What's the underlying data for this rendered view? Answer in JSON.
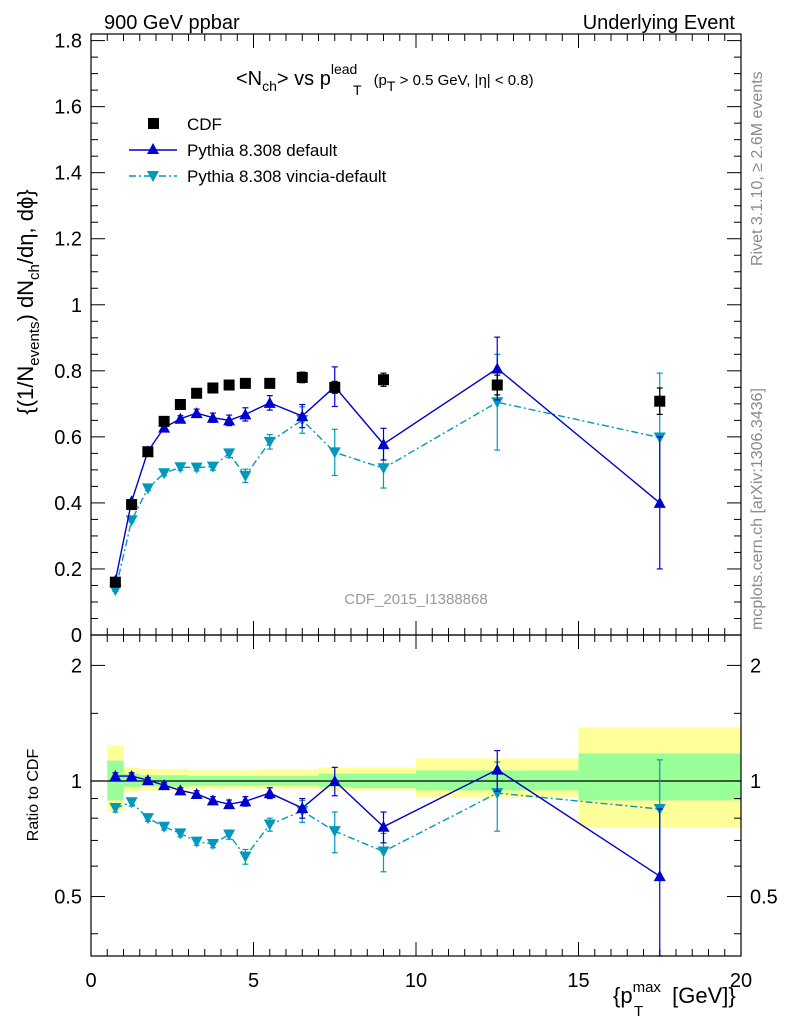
{
  "header": {
    "left": "900 GeV ppbar",
    "right": "Underlying Event"
  },
  "side_labels": {
    "top": "Rivet 3.1.10, ≥ 2.6M events",
    "bottom": "mcplots.cern.ch [arXiv:1306.3436]"
  },
  "watermark": "CDF_2015_I1388868",
  "chart_data": [
    {
      "panel": "main",
      "type": "scatter",
      "title": {
        "lhs": "<N",
        "lhs_sub": "ch",
        "mid": "> vs p",
        "sub_T": "T",
        "sup_lead": "lead",
        "cut_open": "(p",
        "cut_sub": "T",
        "cut_rest": " > 0.5 GeV, |η| < 0.8)"
      },
      "ylabel": {
        "a": "{(1/N",
        "a_sub": "events",
        "b": ") dN",
        "b_sub": "ch",
        "c": "/dη, dϕ}"
      },
      "xlim": [
        0,
        20
      ],
      "ylim": [
        0,
        1.82
      ],
      "yticks": [
        0,
        0.2,
        0.4,
        0.6,
        0.8,
        1,
        1.2,
        1.4,
        1.6,
        1.8
      ],
      "ytick_labels": [
        "0",
        "0.2",
        "0.4",
        "0.6",
        "0.8",
        "1",
        "1.2",
        "1.4",
        "1.6",
        "1.8"
      ],
      "legend_position": "top-left",
      "series": [
        {
          "name": "CDF",
          "color": "#000000",
          "marker": "square",
          "x": [
            0.75,
            1.25,
            1.75,
            2.25,
            2.75,
            3.25,
            3.75,
            4.25,
            4.75,
            5.5,
            6.5,
            7.5,
            9.0,
            12.5,
            17.5
          ],
          "y": [
            0.16,
            0.395,
            0.555,
            0.647,
            0.698,
            0.732,
            0.748,
            0.757,
            0.762,
            0.762,
            0.78,
            0.75,
            0.773,
            0.757,
            0.708
          ],
          "yerr": [
            0.004,
            0.006,
            0.007,
            0.008,
            0.009,
            0.01,
            0.011,
            0.012,
            0.013,
            0.013,
            0.016,
            0.018,
            0.02,
            0.03,
            0.04
          ]
        },
        {
          "name": "Pythia 8.308 default",
          "color": "#0000cc",
          "marker": "triangle-up",
          "line": "solid",
          "x": [
            0.75,
            1.25,
            1.75,
            2.25,
            2.75,
            3.25,
            3.75,
            4.25,
            4.75,
            5.5,
            6.5,
            7.5,
            9.0,
            12.5,
            17.5
          ],
          "y": [
            0.165,
            0.405,
            0.556,
            0.628,
            0.655,
            0.672,
            0.658,
            0.65,
            0.668,
            0.703,
            0.663,
            0.752,
            0.578,
            0.807,
            0.4
          ],
          "yerr": [
            0.004,
            0.005,
            0.007,
            0.008,
            0.009,
            0.012,
            0.014,
            0.016,
            0.02,
            0.022,
            0.035,
            0.06,
            0.048,
            0.095,
            0.2
          ]
        },
        {
          "name": "Pythia 8.308 vincia-default",
          "color": "#0099bb",
          "marker": "triangle-down",
          "line": "dashdot",
          "x": [
            0.75,
            1.25,
            1.75,
            2.25,
            2.75,
            3.25,
            3.75,
            4.25,
            4.75,
            5.5,
            6.5,
            7.5,
            9.0,
            12.5,
            17.5
          ],
          "y": [
            0.136,
            0.347,
            0.444,
            0.49,
            0.508,
            0.507,
            0.51,
            0.55,
            0.482,
            0.585,
            0.651,
            0.553,
            0.505,
            0.705,
            0.598
          ],
          "yerr": [
            0.004,
            0.005,
            0.007,
            0.008,
            0.009,
            0.01,
            0.011,
            0.013,
            0.02,
            0.022,
            0.04,
            0.07,
            0.06,
            0.145,
            0.195
          ]
        }
      ]
    },
    {
      "panel": "ratio",
      "type": "scatter",
      "ylabel": "Ratio to CDF",
      "xlabel": {
        "open": "{p",
        "sub": "T",
        "sup": "max",
        "rest": " [GeV]}"
      },
      "xlim": [
        0,
        20
      ],
      "ylim": [
        0.35,
        2.4
      ],
      "yscale": "log",
      "xticks": [
        0,
        5,
        10,
        15,
        20
      ],
      "xtick_labels": [
        "0",
        "5",
        "10",
        "15",
        "20"
      ],
      "yticks": [
        0.5,
        1,
        2
      ],
      "ytick_labels": [
        "0.5",
        "1",
        "2"
      ],
      "bands": [
        {
          "x0": 0.5,
          "x1": 1.0,
          "yellow": [
            0.835,
            1.24
          ],
          "green": [
            0.89,
            1.13
          ]
        },
        {
          "x0": 1.0,
          "x1": 1.5,
          "yellow": [
            0.935,
            1.085
          ],
          "green": [
            0.965,
            1.045
          ]
        },
        {
          "x0": 1.5,
          "x1": 3.0,
          "yellow": [
            0.945,
            1.075
          ],
          "green": [
            0.968,
            1.035
          ]
        },
        {
          "x0": 3.0,
          "x1": 5.0,
          "yellow": [
            0.955,
            1.065
          ],
          "green": [
            0.972,
            1.03
          ]
        },
        {
          "x0": 5.0,
          "x1": 7.0,
          "yellow": [
            0.955,
            1.07
          ],
          "green": [
            0.972,
            1.03
          ]
        },
        {
          "x0": 7.0,
          "x1": 8.0,
          "yellow": [
            0.945,
            1.085
          ],
          "green": [
            0.965,
            1.045
          ]
        },
        {
          "x0": 8.0,
          "x1": 10.0,
          "yellow": [
            0.945,
            1.085
          ],
          "green": [
            0.958,
            1.045
          ]
        },
        {
          "x0": 10.0,
          "x1": 15.0,
          "yellow": [
            0.905,
            1.145
          ],
          "green": [
            0.945,
            1.065
          ]
        },
        {
          "x0": 15.0,
          "x1": 20.0,
          "yellow": [
            0.755,
            1.38
          ],
          "green": [
            0.89,
            1.18
          ]
        }
      ],
      "series": [
        {
          "name": "Pythia 8.308 default",
          "color": "#0000cc",
          "marker": "triangle-up",
          "line": "solid",
          "x": [
            0.75,
            1.25,
            1.75,
            2.25,
            2.75,
            3.25,
            3.75,
            4.25,
            4.75,
            5.5,
            6.5,
            7.5,
            9.0,
            12.5,
            17.5
          ],
          "y": [
            1.03,
            1.03,
            1.005,
            0.975,
            0.945,
            0.925,
            0.89,
            0.87,
            0.885,
            0.93,
            0.85,
            1.0,
            0.76,
            1.07,
            0.565
          ],
          "yerr": [
            0.02,
            0.02,
            0.015,
            0.015,
            0.015,
            0.018,
            0.02,
            0.022,
            0.025,
            0.03,
            0.05,
            0.085,
            0.07,
            0.13,
            0.28
          ]
        },
        {
          "name": "Pythia 8.308 vincia-default",
          "color": "#0099bb",
          "marker": "triangle-down",
          "line": "dashdot",
          "x": [
            0.75,
            1.25,
            1.75,
            2.25,
            2.75,
            3.25,
            3.75,
            4.25,
            4.75,
            5.5,
            6.5,
            7.5,
            9.0,
            12.5,
            17.5
          ],
          "y": [
            0.85,
            0.88,
            0.8,
            0.76,
            0.73,
            0.695,
            0.685,
            0.725,
            0.635,
            0.77,
            0.835,
            0.74,
            0.655,
            0.93,
            0.845
          ],
          "yerr": [
            0.02,
            0.02,
            0.015,
            0.015,
            0.015,
            0.015,
            0.015,
            0.02,
            0.028,
            0.03,
            0.055,
            0.09,
            0.075,
            0.19,
            0.29
          ]
        }
      ]
    }
  ]
}
